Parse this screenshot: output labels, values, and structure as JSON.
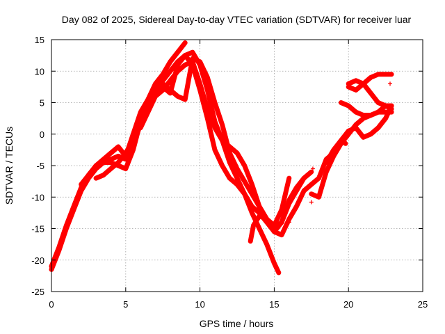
{
  "chart_data": {
    "type": "scatter",
    "title": "Day 082 of 2025, Sidereal Day-to-day VTEC variation (SDTVAR) for receiver luar",
    "xlabel": "GPS time / hours",
    "ylabel": "SDTVAR / TECUs",
    "xlim": [
      0,
      25
    ],
    "ylim": [
      -25,
      15
    ],
    "xticks": [
      0,
      5,
      10,
      15,
      20,
      25
    ],
    "yticks": [
      -25,
      -20,
      -15,
      -10,
      -5,
      0,
      5,
      10,
      15
    ],
    "grid": true,
    "legend": "none",
    "marker": "+",
    "color": "#ff0000",
    "series": [
      {
        "x": [
          0.0,
          0.5,
          1.0,
          1.5,
          2.0,
          2.5,
          3.0,
          3.5,
          4.0,
          4.5,
          5.0,
          5.5,
          6.0,
          6.5,
          7.0,
          7.5,
          8.0,
          8.5,
          9.0
        ],
        "y": [
          -21.0,
          -18.0,
          -14.5,
          -11.5,
          -8.5,
          -6.5,
          -5.0,
          -4.0,
          -3.0,
          -2.0,
          -3.5,
          0.0,
          3.5,
          5.5,
          8.0,
          9.5,
          11.5,
          13.0,
          14.5
        ]
      },
      {
        "x": [
          0.0,
          0.5,
          1.0,
          1.5,
          2.0,
          2.5,
          3.0,
          3.5,
          4.0,
          4.5,
          5.0,
          5.5,
          6.0,
          6.5,
          7.0,
          7.5,
          8.0,
          8.5,
          9.0,
          9.5,
          10.0,
          10.5,
          11.0,
          11.5,
          12.0,
          12.5,
          13.0,
          13.5,
          14.0,
          14.5,
          15.0,
          15.3
        ],
        "y": [
          -21.5,
          -18.5,
          -15.0,
          -12.0,
          -9.0,
          -7.0,
          -5.5,
          -4.5,
          -4.0,
          -3.5,
          -4.0,
          -1.5,
          1.5,
          4.0,
          6.5,
          8.5,
          10.0,
          11.5,
          12.5,
          13.0,
          11.0,
          7.0,
          2.0,
          -1.0,
          -4.5,
          -7.0,
          -9.5,
          -12.5,
          -15.0,
          -17.5,
          -20.5,
          -22.0
        ]
      },
      {
        "x": [
          2.0,
          2.5,
          3.0,
          3.5,
          4.0,
          4.5,
          5.0,
          5.5,
          6.0,
          6.5,
          7.0,
          7.5,
          8.0,
          8.5,
          9.0,
          9.5,
          10.0,
          10.5,
          11.0,
          11.5,
          12.0,
          12.5,
          13.0,
          13.5,
          14.0,
          14.5,
          15.0,
          15.5,
          16.0
        ],
        "y": [
          -8.0,
          -6.5,
          -5.0,
          -4.5,
          -4.5,
          -5.0,
          -5.5,
          -2.5,
          2.0,
          4.5,
          7.5,
          8.0,
          7.0,
          6.0,
          5.5,
          12.0,
          11.5,
          9.0,
          5.0,
          1.5,
          -3.0,
          -5.5,
          -7.5,
          -9.5,
          -11.5,
          -13.5,
          -14.5,
          -12.0,
          -7.0
        ]
      },
      {
        "x": [
          3.0,
          3.5,
          4.0,
          4.5,
          5.0,
          5.5,
          6.0,
          6.5,
          7.0,
          7.5,
          8.0,
          8.5,
          9.0,
          9.5,
          10.0,
          10.5,
          11.0,
          11.5,
          12.0,
          12.5,
          13.0,
          13.5,
          14.0,
          14.5,
          15.0,
          15.5,
          16.0,
          16.5,
          17.0
        ],
        "y": [
          -7.0,
          -6.5,
          -5.5,
          -4.5,
          -3.0,
          -1.0,
          2.0,
          5.0,
          7.0,
          7.5,
          6.5,
          11.0,
          12.5,
          11.0,
          7.0,
          2.5,
          -2.5,
          -5.0,
          -7.0,
          -8.0,
          -9.5,
          -11.5,
          -12.5,
          -14.0,
          -15.5,
          -14.0,
          -11.0,
          -9.0,
          -7.0
        ]
      },
      {
        "x": [
          6.0,
          6.5,
          7.0,
          7.5,
          8.0,
          8.5,
          9.0,
          9.5,
          10.0,
          10.5,
          11.0,
          11.5,
          12.0,
          12.5,
          13.0,
          13.5,
          14.0,
          14.5,
          15.0,
          15.5,
          16.0,
          16.5,
          17.0,
          17.5
        ],
        "y": [
          1.0,
          3.5,
          6.0,
          7.0,
          8.5,
          10.0,
          11.0,
          11.5,
          8.0,
          4.0,
          1.0,
          -1.0,
          -2.0,
          -3.0,
          -5.0,
          -8.0,
          -11.5,
          -13.5,
          -15.0,
          -14.0,
          -10.5,
          -8.5,
          -7.0,
          -6.0
        ]
      },
      {
        "x": [
          13.4,
          13.6,
          14.0,
          14.5,
          15.0,
          15.5,
          16.0,
          16.5,
          17.0,
          17.5,
          18.0,
          18.5,
          19.0,
          19.5,
          20.0,
          20.5,
          21.0,
          21.5,
          22.0,
          22.5,
          22.9
        ],
        "y": [
          -17.0,
          -14.5,
          -13.0,
          -13.5,
          -15.5,
          -16.0,
          -13.5,
          -11.5,
          -9.0,
          -8.0,
          -7.0,
          -4.0,
          -3.0,
          -1.0,
          0.5,
          1.0,
          -0.5,
          0.0,
          1.0,
          2.5,
          4.5
        ]
      },
      {
        "x": [
          17.5,
          18.0,
          18.5,
          19.0,
          19.5,
          20.0,
          20.5,
          21.0,
          21.5,
          22.0,
          22.5,
          22.9
        ],
        "y": [
          -9.5,
          -10.0,
          -6.0,
          -3.5,
          -1.5,
          0.0,
          1.5,
          2.5,
          3.0,
          3.5,
          4.5,
          4.5
        ]
      },
      {
        "x": [
          18.5,
          19.0,
          19.5,
          19.8
        ],
        "y": [
          -4.5,
          -2.5,
          -1.0,
          -1.5
        ]
      },
      {
        "x": [
          19.5,
          20.0,
          20.5,
          21.0,
          21.5,
          22.0,
          22.5,
          22.9
        ],
        "y": [
          5.0,
          4.5,
          3.5,
          3.0,
          3.0,
          3.5,
          3.5,
          3.5
        ]
      },
      {
        "x": [
          20.0,
          20.5,
          21.0,
          21.5,
          22.0,
          22.5,
          22.9
        ],
        "y": [
          7.5,
          7.0,
          8.0,
          9.0,
          9.5,
          9.5,
          9.5
        ]
      },
      {
        "x": [
          20.0,
          20.5,
          21.0,
          21.5,
          22.0,
          22.5,
          22.9
        ],
        "y": [
          8.0,
          8.5,
          8.0,
          6.5,
          5.0,
          4.5,
          4.0
        ]
      }
    ],
    "scatter_points": [
      {
        "x": 17.6,
        "y": -5.5
      },
      {
        "x": 17.5,
        "y": -10.8
      },
      {
        "x": 22.8,
        "y": 8.0
      },
      {
        "x": 16.0,
        "y": -14.0
      }
    ]
  }
}
